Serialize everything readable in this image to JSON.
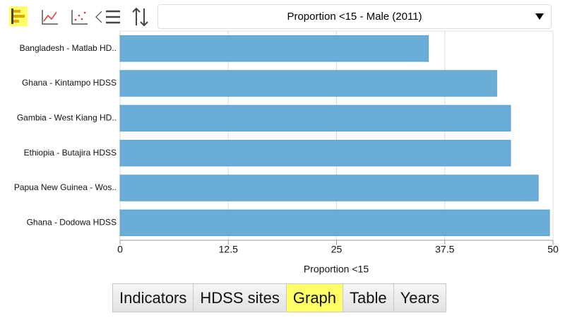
{
  "dropdown": {
    "label": "Proportion  <15 - Male (2011)"
  },
  "tabs": [
    "Indicators",
    "HDSS sites",
    "Graph",
    "Table",
    "Years"
  ],
  "chart_data": {
    "type": "bar",
    "orientation": "horizontal",
    "x_label": "Proportion <15",
    "categories": [
      "Bangladesh - Matlab HD..",
      "Ghana - Kintampo HDSS",
      "Gambia - West Kiang HD..",
      "Ethiopia - Butajira HDSS",
      "Papua New Guinea - Wos..",
      "Ghana - Dodowa HDSS"
    ],
    "values": [
      35.6,
      43.5,
      45.1,
      45.1,
      48.3,
      49.6
    ],
    "color": "#6aaed8",
    "xlim": [
      0,
      50
    ],
    "xticks": [
      0,
      12.5,
      25,
      37.5,
      50
    ],
    "grid": true
  }
}
